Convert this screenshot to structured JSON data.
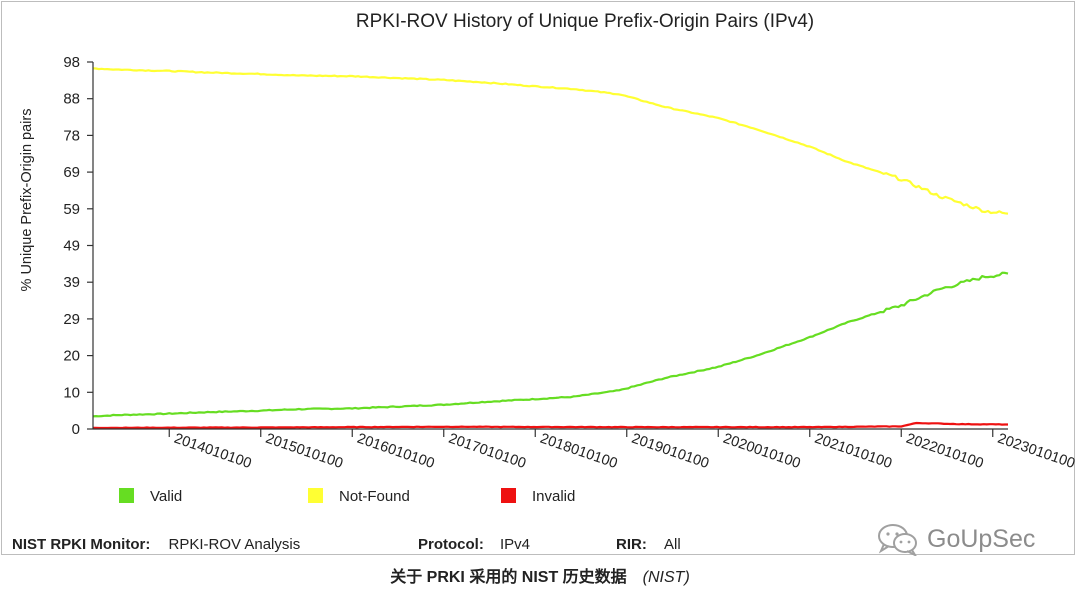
{
  "chart_data": {
    "type": "line",
    "title": "RPKI-ROV History of Unique Prefix-Origin Pairs (IPv4)",
    "ylabel": "% Unique Prefix-Origin pairs",
    "xlabel": "",
    "ylim": [
      0,
      98
    ],
    "yticks": [
      "0",
      "10",
      "20",
      "29",
      "39",
      "49",
      "59",
      "69",
      "78",
      "88",
      "98"
    ],
    "ytick_values": [
      0,
      9.8,
      19.6,
      29.4,
      39.2,
      49,
      58.8,
      68.6,
      78.4,
      88.2,
      98
    ],
    "xticks": [
      "2014010100",
      "2015010100",
      "2016010100",
      "2017010100",
      "2018010100",
      "2019010100",
      "2020010100",
      "2021010100",
      "2022010100",
      "2023010100"
    ],
    "xlim": [
      "2013-03",
      "2023-03"
    ],
    "legend_position": "bottom",
    "grid": false,
    "series": [
      {
        "name": "Valid",
        "color": "#66dd22",
        "points": [
          [
            "2013-03",
            3.4
          ],
          [
            "2013-06",
            3.7
          ],
          [
            "2014-01",
            4.1
          ],
          [
            "2014-06",
            4.5
          ],
          [
            "2015-01",
            4.9
          ],
          [
            "2015-06",
            5.3
          ],
          [
            "2016-01",
            5.5
          ],
          [
            "2016-06",
            5.9
          ],
          [
            "2017-01",
            6.5
          ],
          [
            "2017-06",
            7.2
          ],
          [
            "2018-01",
            8.0
          ],
          [
            "2018-06",
            8.6
          ],
          [
            "2018-12",
            10.3
          ],
          [
            "2019-06",
            13.6
          ],
          [
            "2020-01",
            16.6
          ],
          [
            "2020-06",
            19.6
          ],
          [
            "2021-01",
            24.5
          ],
          [
            "2021-06",
            28.5
          ],
          [
            "2022-01",
            33.0
          ],
          [
            "2022-06",
            37.3
          ],
          [
            "2022-12",
            40.7
          ],
          [
            "2023-03",
            41.5
          ]
        ]
      },
      {
        "name": "Not-Found",
        "color": "#ffff33",
        "points": [
          [
            "2013-03",
            96.3
          ],
          [
            "2013-06",
            96.0
          ],
          [
            "2014-01",
            95.6
          ],
          [
            "2014-06",
            95.2
          ],
          [
            "2015-01",
            94.8
          ],
          [
            "2015-06",
            94.4
          ],
          [
            "2016-01",
            94.2
          ],
          [
            "2016-06",
            93.8
          ],
          [
            "2017-01",
            93.2
          ],
          [
            "2017-06",
            92.6
          ],
          [
            "2018-01",
            91.5
          ],
          [
            "2018-06",
            90.8
          ],
          [
            "2018-12",
            89.4
          ],
          [
            "2019-06",
            86.0
          ],
          [
            "2020-01",
            83.0
          ],
          [
            "2020-06",
            80.1
          ],
          [
            "2021-01",
            75.4
          ],
          [
            "2021-06",
            71.3
          ],
          [
            "2022-01",
            66.7
          ],
          [
            "2022-06",
            62.2
          ],
          [
            "2022-12",
            58.2
          ],
          [
            "2023-03",
            57.5
          ]
        ]
      },
      {
        "name": "Invalid",
        "color": "#ee1111",
        "points": [
          [
            "2013-03",
            0.3
          ],
          [
            "2015-01",
            0.4
          ],
          [
            "2017-01",
            0.6
          ],
          [
            "2019-01",
            0.5
          ],
          [
            "2021-01",
            0.5
          ],
          [
            "2022-01",
            0.7
          ],
          [
            "2022-03",
            1.6
          ],
          [
            "2022-09",
            1.3
          ],
          [
            "2023-03",
            1.2
          ]
        ]
      }
    ]
  },
  "footer": {
    "monitor_label": "NIST RPKI Monitor:",
    "monitor_value": "RPKI-ROV Analysis",
    "protocol_label": "Protocol:",
    "protocol_value": "IPv4",
    "rir_label": "RIR:",
    "rir_value": "All"
  },
  "watermark": {
    "text": "GoUpSec"
  },
  "caption": {
    "main": "关于 PRKI 采用的 NIST 历史数据",
    "source": "(NIST)"
  }
}
